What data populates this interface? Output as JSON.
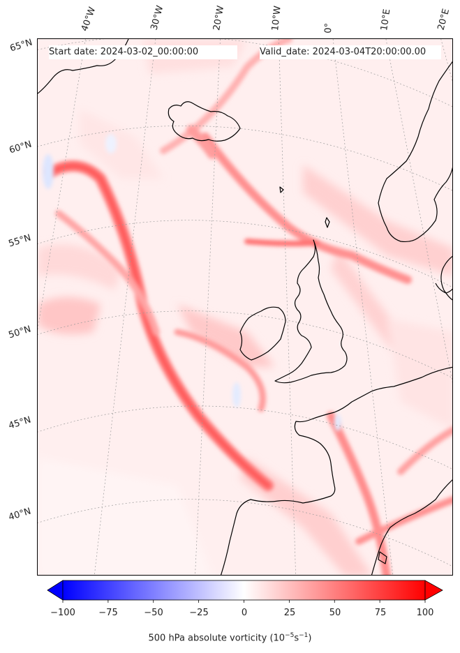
{
  "header": {
    "start_date": "Start date: 2024-03-02_00:00:00",
    "valid_date": "Valid_date: 2024-03-04T20:00:00.00"
  },
  "longitude_labels": [
    "40°W",
    "30°W",
    "20°W",
    "10°W",
    "0°",
    "10°E",
    "20°E"
  ],
  "latitude_labels": [
    "65°N",
    "60°N",
    "55°N",
    "50°N",
    "45°N",
    "40°N"
  ],
  "colorbar": {
    "ticks": [
      "−100",
      "−75",
      "−50",
      "−25",
      "0",
      "25",
      "50",
      "75",
      "100"
    ],
    "label_prefix": "500 hPa absolute vorticity (10",
    "label_exp1": "−5",
    "label_mid": "s",
    "label_exp2": "−1",
    "label_suffix": ")",
    "colors": {
      "negative": "#0000ff",
      "zero": "#ffffff",
      "positive": "#ff0000"
    },
    "range": [
      -100,
      100
    ]
  },
  "map": {
    "field": "500 hPa absolute vorticity",
    "projection": "conic",
    "gridlines": true,
    "coastline_color": "#000000"
  }
}
